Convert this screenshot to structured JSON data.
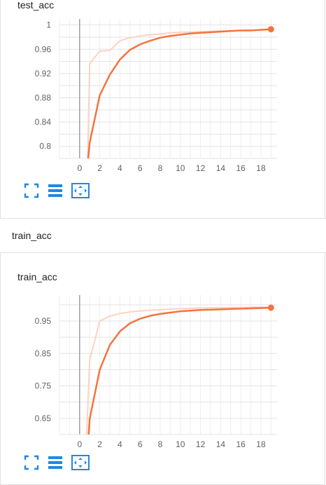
{
  "accent_color": "#f4733f",
  "accent_light": "#fbd3c3",
  "icon_color": "#1e88e5",
  "section_label": "train_acc",
  "charts": [
    {
      "title": "test_acc",
      "icons": [
        "fullscreen-icon",
        "data-table-icon",
        "fit-domain-icon"
      ]
    },
    {
      "title": "train_acc",
      "icons": [
        "fullscreen-icon",
        "data-table-icon",
        "fit-domain-icon"
      ]
    }
  ],
  "chart_data": [
    {
      "type": "line",
      "title": "test_acc",
      "xlim": [
        -2,
        19.6
      ],
      "ylim": [
        0.78,
        1.01
      ],
      "xticks": [
        "0",
        "2",
        "4",
        "6",
        "8",
        "10",
        "12",
        "14",
        "16",
        "18"
      ],
      "yticks": [
        "1",
        "0.96",
        "0.92",
        "0.88",
        "0.84",
        "0.8"
      ],
      "grid": true,
      "series": [
        {
          "style": "raw",
          "x": [
            0.8,
            1,
            2,
            3,
            4,
            5,
            6,
            7,
            8,
            9,
            10,
            12,
            14,
            16,
            18,
            19
          ],
          "y": [
            0.78,
            0.936,
            0.957,
            0.958,
            0.974,
            0.979,
            0.982,
            0.984,
            0.985,
            0.987,
            0.988,
            0.989,
            0.99,
            0.991,
            0.992,
            0.993
          ]
        },
        {
          "style": "smoothed",
          "x": [
            0.85,
            1,
            2,
            3,
            4,
            5,
            6,
            7,
            8,
            9,
            10,
            11,
            12,
            13,
            14,
            15,
            16,
            17,
            18,
            19
          ],
          "y": [
            0.78,
            0.806,
            0.884,
            0.918,
            0.943,
            0.959,
            0.968,
            0.974,
            0.979,
            0.982,
            0.984,
            0.986,
            0.987,
            0.988,
            0.989,
            0.99,
            0.991,
            0.991,
            0.992,
            0.993
          ]
        }
      ]
    },
    {
      "type": "line",
      "title": "train_acc",
      "xlim": [
        -2,
        19.6
      ],
      "ylim": [
        0.6,
        1.03
      ],
      "xticks": [
        "0",
        "2",
        "4",
        "6",
        "8",
        "10",
        "12",
        "14",
        "16",
        "18"
      ],
      "yticks": [
        "0.95",
        "0.85",
        "0.75",
        "0.65"
      ],
      "grid": true,
      "series": [
        {
          "style": "raw",
          "x": [
            0.7,
            1,
            2,
            3,
            4,
            5,
            6,
            8,
            10,
            12,
            14,
            16,
            18,
            19
          ],
          "y": [
            0.6,
            0.83,
            0.95,
            0.965,
            0.973,
            0.978,
            0.981,
            0.985,
            0.988,
            0.99,
            0.991,
            0.992,
            0.993,
            0.993
          ]
        },
        {
          "style": "smoothed",
          "x": [
            0.9,
            1,
            2,
            3,
            4,
            5,
            6,
            7,
            8,
            9,
            10,
            11,
            12,
            13,
            14,
            15,
            16,
            17,
            18,
            19
          ],
          "y": [
            0.6,
            0.648,
            0.8,
            0.876,
            0.918,
            0.943,
            0.957,
            0.966,
            0.972,
            0.976,
            0.98,
            0.982,
            0.984,
            0.985,
            0.986,
            0.987,
            0.988,
            0.989,
            0.99,
            0.991
          ]
        }
      ]
    }
  ]
}
